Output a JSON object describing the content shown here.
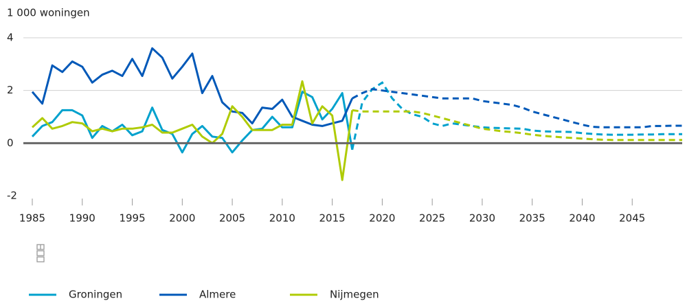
{
  "chart_data": {
    "type": "line",
    "y_axis_label": "1 000 woningen",
    "x": [
      1985,
      1986,
      1987,
      1988,
      1989,
      1990,
      1991,
      1992,
      1993,
      1994,
      1995,
      1996,
      1997,
      1998,
      1999,
      2000,
      2001,
      2002,
      2003,
      2004,
      2005,
      2006,
      2007,
      2008,
      2009,
      2010,
      2011,
      2012,
      2013,
      2014,
      2015,
      2016,
      2017,
      2018,
      2019,
      2020,
      2021,
      2022,
      2023,
      2024,
      2025,
      2026,
      2027,
      2028,
      2029,
      2030,
      2031,
      2032,
      2033,
      2034,
      2035,
      2036,
      2037,
      2038,
      2039,
      2040,
      2041,
      2042,
      2043,
      2044,
      2045,
      2046,
      2047,
      2048,
      2049,
      2050
    ],
    "xlim": [
      1985,
      2050
    ],
    "xticks": [
      1985,
      1990,
      1995,
      2000,
      2005,
      2010,
      2015,
      2020,
      2025,
      2030,
      2035,
      2040,
      2045
    ],
    "ylim": [
      -2,
      4
    ],
    "yticks": [
      -2,
      0,
      2,
      4
    ],
    "grid": true,
    "series": [
      {
        "name": "Groningen",
        "color": "#00a1cd",
        "values": [
          0.25,
          0.65,
          0.8,
          1.25,
          1.25,
          1.05,
          0.2,
          0.65,
          0.45,
          0.7,
          0.3,
          0.45,
          1.35,
          0.5,
          0.35,
          -0.35,
          0.35,
          0.65,
          0.25,
          0.2,
          -0.35,
          0.1,
          0.5,
          0.55,
          1.0,
          0.6,
          0.6,
          1.95,
          1.75,
          0.9,
          1.3,
          1.9,
          -0.25,
          null,
          null,
          null,
          null,
          null,
          null,
          null,
          null,
          null,
          null,
          null,
          null,
          null,
          null,
          null,
          null,
          null,
          null,
          null,
          null,
          null,
          null,
          null,
          null,
          null,
          null,
          null,
          null,
          null,
          null,
          null,
          null,
          null
        ],
        "projected": [
          null,
          null,
          null,
          null,
          null,
          null,
          null,
          null,
          null,
          null,
          null,
          null,
          null,
          null,
          null,
          null,
          null,
          null,
          null,
          null,
          null,
          null,
          null,
          null,
          null,
          null,
          null,
          null,
          null,
          null,
          null,
          null,
          -0.25,
          1.55,
          2.05,
          2.3,
          1.7,
          1.3,
          1.1,
          1.0,
          0.75,
          0.65,
          0.75,
          0.7,
          0.65,
          0.6,
          0.58,
          0.57,
          0.56,
          0.55,
          0.48,
          0.45,
          0.44,
          0.43,
          0.42,
          0.38,
          0.35,
          0.33,
          0.32,
          0.32,
          0.32,
          0.33,
          0.33,
          0.34,
          0.34,
          0.34
        ]
      },
      {
        "name": "Almere",
        "color": "#0058b8",
        "values": [
          1.95,
          1.5,
          2.95,
          2.7,
          3.1,
          2.9,
          2.3,
          2.6,
          2.75,
          2.55,
          3.2,
          2.55,
          3.6,
          3.25,
          2.45,
          2.9,
          3.4,
          1.9,
          2.55,
          1.55,
          1.2,
          1.15,
          0.75,
          1.35,
          1.3,
          1.65,
          1.0,
          0.85,
          0.7,
          0.65,
          0.75,
          0.85,
          1.7,
          null,
          null,
          null,
          null,
          null,
          null,
          null,
          null,
          null,
          null,
          null,
          null,
          null,
          null,
          null,
          null,
          null,
          null,
          null,
          null,
          null,
          null,
          null,
          null,
          null,
          null,
          null,
          null,
          null,
          null,
          null,
          null,
          null
        ],
        "projected": [
          null,
          null,
          null,
          null,
          null,
          null,
          null,
          null,
          null,
          null,
          null,
          null,
          null,
          null,
          null,
          null,
          null,
          null,
          null,
          null,
          null,
          null,
          null,
          null,
          null,
          null,
          null,
          null,
          null,
          null,
          null,
          null,
          1.7,
          1.9,
          2.05,
          2.0,
          1.95,
          1.9,
          1.85,
          1.8,
          1.75,
          1.7,
          1.7,
          1.7,
          1.7,
          1.6,
          1.55,
          1.5,
          1.45,
          1.35,
          1.2,
          1.1,
          1.0,
          0.9,
          0.8,
          0.7,
          0.62,
          0.6,
          0.6,
          0.6,
          0.6,
          0.6,
          0.65,
          0.65,
          0.66,
          0.66
        ]
      },
      {
        "name": "Nijmegen",
        "color": "#afcb05",
        "values": [
          0.6,
          0.95,
          0.55,
          0.65,
          0.8,
          0.75,
          0.45,
          0.55,
          0.45,
          0.55,
          0.55,
          0.6,
          0.7,
          0.4,
          0.4,
          0.55,
          0.7,
          0.25,
          0.0,
          0.35,
          1.4,
          1.0,
          0.5,
          0.5,
          0.5,
          0.7,
          0.7,
          2.35,
          0.75,
          1.4,
          1.05,
          -1.4,
          1.25,
          null,
          null,
          null,
          null,
          null,
          null,
          null,
          null,
          null,
          null,
          null,
          null,
          null,
          null,
          null,
          null,
          null,
          null,
          null,
          null,
          null,
          null,
          null,
          null,
          null,
          null,
          null,
          null,
          null,
          null,
          null,
          null,
          null
        ],
        "projected": [
          null,
          null,
          null,
          null,
          null,
          null,
          null,
          null,
          null,
          null,
          null,
          null,
          null,
          null,
          null,
          null,
          null,
          null,
          null,
          null,
          null,
          null,
          null,
          null,
          null,
          null,
          null,
          null,
          null,
          null,
          null,
          null,
          1.25,
          1.2,
          1.2,
          1.2,
          1.2,
          1.2,
          1.2,
          1.15,
          1.05,
          0.95,
          0.85,
          0.75,
          0.65,
          0.55,
          0.5,
          0.45,
          0.42,
          0.38,
          0.32,
          0.28,
          0.25,
          0.22,
          0.2,
          0.17,
          0.15,
          0.13,
          0.12,
          0.12,
          0.12,
          0.12,
          0.12,
          0.12,
          0.12,
          0.12
        ]
      }
    ]
  }
}
